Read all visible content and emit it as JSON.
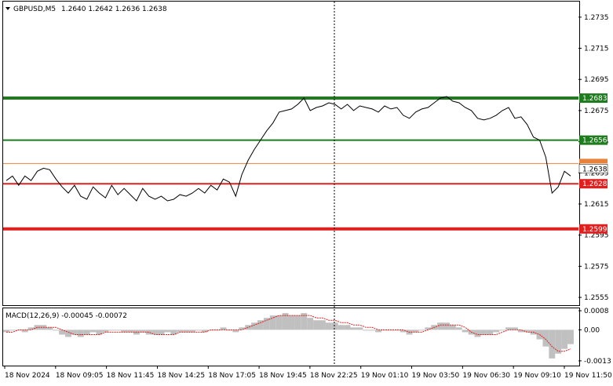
{
  "header": {
    "symbol_timeframe": "GBPUSD,M5",
    "ohlc": "1.2640 1.2642 1.2636 1.2638",
    "menu_icon": "triangle-down-icon"
  },
  "indicator": {
    "label": "MACD(12,26,9) -0.00045 -0.00072",
    "axis_ticks": [
      {
        "value": 0.0008,
        "label": "0.0008"
      },
      {
        "value": 0.0,
        "label": "0.00"
      },
      {
        "value": -0.0013,
        "label": "-0.0013"
      }
    ]
  },
  "price_axis": {
    "ticks": [
      {
        "value": 1.2735,
        "label": "1.2735"
      },
      {
        "value": 1.2715,
        "label": "1.2715"
      },
      {
        "value": 1.2695,
        "label": "1.2695"
      },
      {
        "value": 1.2675,
        "label": "1.2675"
      },
      {
        "value": 1.2655,
        "label": "1.2655"
      },
      {
        "value": 1.2635,
        "label": "1.2635"
      },
      {
        "value": 1.2615,
        "label": "1.2615"
      },
      {
        "value": 1.2595,
        "label": "1.2595"
      },
      {
        "value": 1.2575,
        "label": "1.2575"
      },
      {
        "value": 1.2555,
        "label": "1.2555"
      }
    ]
  },
  "time_axis": {
    "labels": [
      "18 Nov 2024",
      "18 Nov 09:05",
      "18 Nov 11:45",
      "18 Nov 14:25",
      "18 Nov 17:05",
      "18 Nov 19:45",
      "18 Nov 22:25",
      "19 Nov 01:10",
      "19 Nov 03:50",
      "19 Nov 06:30",
      "19 Nov 09:10",
      "19 Nov 11:50"
    ]
  },
  "levels": [
    {
      "value": 1.2683,
      "label": "1.2683",
      "color": "#1e7b1e",
      "weight": "thick"
    },
    {
      "value": 1.2656,
      "label": "1.2656",
      "color": "#1e7b1e",
      "weight": "thin"
    },
    {
      "value": 1.2628,
      "label": "1.2628",
      "color": "#e0201f",
      "weight": "thin"
    },
    {
      "value": 1.2599,
      "label": "1.2599",
      "color": "#e0201f",
      "weight": "thick"
    }
  ],
  "bid_line": {
    "value": 1.2641,
    "color": "#e8823a"
  },
  "current_price": {
    "value": 1.2638,
    "label": "1.2638",
    "color": "#000000"
  },
  "chart_data": {
    "type": "line",
    "title": "GBPUSD,M5",
    "price_ylim": [
      1.255,
      1.2745
    ],
    "price_series": [
      1.263,
      1.2633,
      1.2627,
      1.2633,
      1.263,
      1.2636,
      1.2638,
      1.2637,
      1.2631,
      1.2626,
      1.2622,
      1.2627,
      1.262,
      1.2618,
      1.2626,
      1.2622,
      1.2619,
      1.2627,
      1.2621,
      1.2625,
      1.2621,
      1.2617,
      1.2625,
      1.262,
      1.2618,
      1.262,
      1.2617,
      1.2618,
      1.2621,
      1.262,
      1.2622,
      1.2625,
      1.2622,
      1.2627,
      1.2624,
      1.2631,
      1.2629,
      1.262,
      1.2634,
      1.2643,
      1.265,
      1.2656,
      1.2662,
      1.2667,
      1.2674,
      1.2675,
      1.2676,
      1.2679,
      1.2683,
      1.2675,
      1.2677,
      1.2678,
      1.268,
      1.2679,
      1.2676,
      1.2679,
      1.2675,
      1.2678,
      1.2677,
      1.2676,
      1.2674,
      1.2678,
      1.2676,
      1.2677,
      1.2672,
      1.267,
      1.2674,
      1.2676,
      1.2677,
      1.268,
      1.2683,
      1.2684,
      1.2681,
      1.268,
      1.2677,
      1.2675,
      1.267,
      1.2669,
      1.267,
      1.2672,
      1.2675,
      1.2677,
      1.267,
      1.2671,
      1.2666,
      1.2658,
      1.2656,
      1.2645,
      1.2622,
      1.2626,
      1.2636,
      1.2633
    ],
    "macd_ylim": [
      -0.0015,
      0.0009
    ],
    "macd_hist": [
      -0.0001,
      0.0,
      0.0,
      -0.0001,
      0.0001,
      0.0002,
      0.0002,
      0.0001,
      0.0,
      -0.0002,
      -0.0003,
      -0.0002,
      -0.0003,
      -0.0002,
      -0.0001,
      -0.0002,
      -0.0001,
      0.0,
      0.0,
      -0.0001,
      -0.0001,
      -0.0002,
      -0.0001,
      -0.0002,
      -0.0002,
      -0.0002,
      -0.0001,
      -0.0002,
      -0.0001,
      -0.0001,
      -0.0001,
      0.0,
      -0.0001,
      0.0,
      0.0,
      0.0001,
      0.0,
      -0.0001,
      0.0001,
      0.0002,
      0.0003,
      0.0004,
      0.0005,
      0.0006,
      0.0006,
      0.0007,
      0.0006,
      0.0006,
      0.0007,
      0.0005,
      0.0004,
      0.0004,
      0.0003,
      0.0003,
      0.0002,
      0.0002,
      0.0001,
      0.0001,
      0.0,
      0.0,
      -0.0001,
      0.0,
      0.0,
      0.0,
      -0.0001,
      -0.0002,
      -0.0001,
      0.0,
      0.0001,
      0.0002,
      0.0003,
      0.0003,
      0.0002,
      0.0001,
      -0.0001,
      -0.0002,
      -0.0003,
      -0.0002,
      -0.0002,
      -0.0001,
      0.0,
      0.0001,
      0.0001,
      -0.0001,
      -0.0001,
      -0.0002,
      -0.0004,
      -0.0007,
      -0.0012,
      -0.001,
      -0.0008,
      -0.0006
    ],
    "macd_signal": [
      -0.0001,
      -0.0001,
      0.0,
      0.0,
      0.0,
      0.0001,
      0.0001,
      0.0001,
      0.0001,
      0.0,
      -0.0001,
      -0.0002,
      -0.0002,
      -0.0002,
      -0.0002,
      -0.0002,
      -0.0001,
      -0.0001,
      -0.0001,
      -0.0001,
      -0.0001,
      -0.0001,
      -0.0001,
      -0.0001,
      -0.0002,
      -0.0002,
      -0.0002,
      -0.0002,
      -0.0001,
      -0.0001,
      -0.0001,
      -0.0001,
      -0.0001,
      0.0,
      0.0,
      0.0,
      0.0,
      0.0,
      0.0,
      0.0001,
      0.0002,
      0.0003,
      0.0004,
      0.0005,
      0.0006,
      0.0006,
      0.0006,
      0.0006,
      0.0006,
      0.0006,
      0.0005,
      0.0005,
      0.0004,
      0.0004,
      0.0003,
      0.0003,
      0.0002,
      0.0002,
      0.0001,
      0.0001,
      0.0,
      0.0,
      0.0,
      0.0,
      0.0,
      -0.0001,
      -0.0001,
      -0.0001,
      0.0,
      0.0001,
      0.0002,
      0.0002,
      0.0002,
      0.0002,
      0.0001,
      -0.0001,
      -0.0002,
      -0.0002,
      -0.0002,
      -0.0002,
      -0.0001,
      0.0,
      0.0,
      0.0,
      -0.0001,
      -0.0001,
      -0.0002,
      -0.0004,
      -0.0007,
      -0.0009,
      -0.0009,
      -0.0008
    ]
  }
}
